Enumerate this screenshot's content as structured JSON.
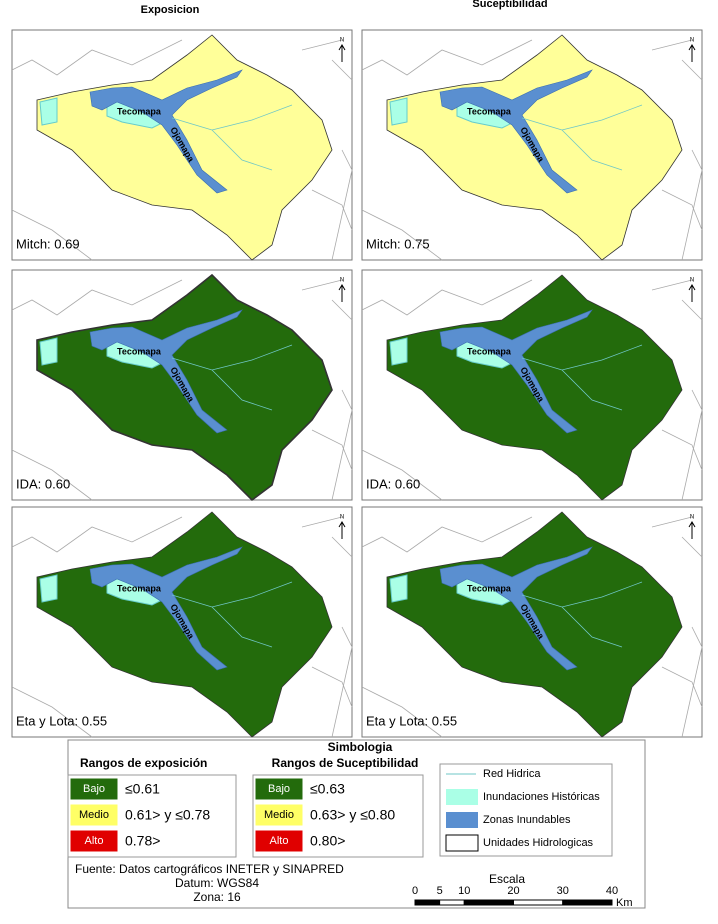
{
  "headers": [
    "Exposicion",
    "Suceptibilidad"
  ],
  "map_labels": [
    "Tecomapa",
    "Ojomapa"
  ],
  "north": "N",
  "panels": [
    {
      "label": "Mitch: 0.69",
      "fill": "#ffff99"
    },
    {
      "label": "Mitch: 0.75",
      "fill": "#ffff99"
    },
    {
      "label": "IDA: 0.60",
      "fill": "#236b0c"
    },
    {
      "label": "IDA: 0.60",
      "fill": "#236b0c"
    },
    {
      "label": "Eta y Lota: 0.55",
      "fill": "#236b0c"
    },
    {
      "label": "Eta y Lota: 0.55",
      "fill": "#236b0c"
    }
  ],
  "legend": {
    "title": "Simbologia",
    "exposure": {
      "title": "Rangos de exposición",
      "rows": [
        {
          "class": "Bajo",
          "range": "≤0.61",
          "color": "#236b0c"
        },
        {
          "class": "Medio",
          "range": "0.61> y ≤0.78",
          "color": "#ffff66"
        },
        {
          "class": "Alto",
          "range": "0.78>",
          "color": "#e00000"
        }
      ]
    },
    "susceptibility": {
      "title": "Rangos de Suceptibilidad",
      "rows": [
        {
          "class": "Bajo",
          "range": "≤0.63",
          "color": "#236b0c"
        },
        {
          "class": "Medio",
          "range": "0.63> y ≤0.80",
          "color": "#ffff66"
        },
        {
          "class": "Alto",
          "range": "0.80>",
          "color": "#e00000"
        }
      ]
    },
    "layers": [
      {
        "name": "Red Hidrica",
        "color": "#6fc7c7"
      },
      {
        "name": "Inundaciones Históricas",
        "color": "#aaffe6"
      },
      {
        "name": "Zonas Inundables",
        "color": "#5a8fd0"
      },
      {
        "name": "Unidades Hidrologicas",
        "color": "#ffffff"
      }
    ],
    "source": [
      "Fuente: Datos cartográficos INETER y SINAPRED",
      "Datum: WGS84",
      "Zona: 16"
    ],
    "scale": {
      "title": "Escala",
      "ticks": [
        0,
        5,
        10,
        20,
        30,
        40
      ],
      "unit": "Km"
    }
  }
}
